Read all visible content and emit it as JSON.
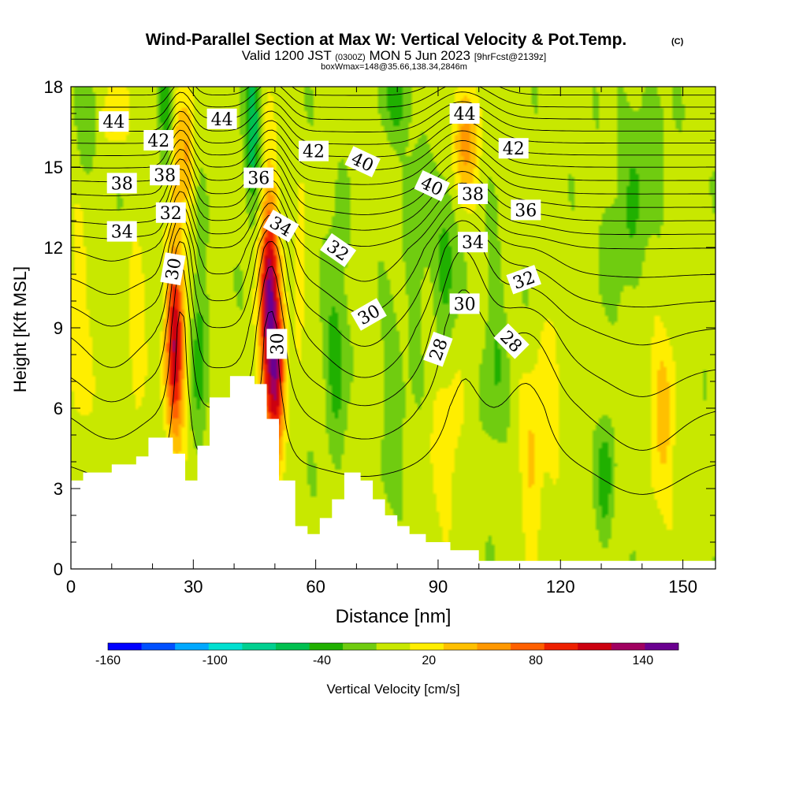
{
  "header": {
    "title": "Wind-Parallel Section at Max W: Vertical Velocity & Pot.Temp.",
    "copyright": "(C)",
    "valid_prefix": "Valid 1200 JST",
    "valid_utc": "(0300Z)",
    "valid_date": "MON 5 Jun 2023",
    "fcst": "[9hrFcst@2139z]",
    "boxinfo": "boxWmax=148@35.66,138.34,2846m"
  },
  "chart_data": {
    "type": "heatmap",
    "xlabel": "Distance [nm]",
    "ylabel": "Height [Kft MSL]",
    "xlim": [
      0,
      158
    ],
    "ylim": [
      0,
      18
    ],
    "x_ticks": [
      "0",
      "30",
      "60",
      "90",
      "120",
      "150"
    ],
    "y_ticks": [
      "0",
      "3",
      "6",
      "9",
      "12",
      "15",
      "18"
    ],
    "background_color": "#ffee00",
    "colorbar": {
      "label": "Vertical Velocity [cm/s]",
      "tick_labels": [
        "-160",
        "-100",
        "-40",
        "20",
        "80",
        "140"
      ],
      "levels": [
        -160,
        -140,
        -120,
        -100,
        -80,
        -60,
        -40,
        -20,
        0,
        20,
        40,
        60,
        80,
        100,
        120,
        140,
        160
      ],
      "colors": [
        "#0000ff",
        "#0050ff",
        "#00a8ff",
        "#00e0d0",
        "#00d090",
        "#00c050",
        "#20b000",
        "#70cc10",
        "#c8e800",
        "#ffee00",
        "#ffc000",
        "#ff9800",
        "#ff6000",
        "#ee2000",
        "#cc0010",
        "#a00060",
        "#6a0090"
      ]
    },
    "terrain": [
      [
        0,
        3.3
      ],
      [
        3,
        3.3
      ],
      [
        3,
        3.6
      ],
      [
        10,
        3.6
      ],
      [
        10,
        3.9
      ],
      [
        16,
        3.9
      ],
      [
        16,
        4.2
      ],
      [
        19,
        4.2
      ],
      [
        19,
        4.9
      ],
      [
        25,
        4.9
      ],
      [
        25,
        4.3
      ],
      [
        28,
        4.3
      ],
      [
        28,
        3.3
      ],
      [
        31,
        3.3
      ],
      [
        31,
        4.6
      ],
      [
        34,
        4.6
      ],
      [
        34,
        6.4
      ],
      [
        39,
        6.4
      ],
      [
        39,
        7.2
      ],
      [
        42,
        7.2
      ],
      [
        42,
        7.2
      ],
      [
        45,
        7.2
      ],
      [
        45,
        6.9
      ],
      [
        48,
        6.9
      ],
      [
        48,
        5.6
      ],
      [
        51,
        5.6
      ],
      [
        51,
        3.3
      ],
      [
        55,
        3.3
      ],
      [
        55,
        1.6
      ],
      [
        58,
        1.6
      ],
      [
        58,
        1.3
      ],
      [
        61,
        1.3
      ],
      [
        61,
        1.9
      ],
      [
        64,
        1.9
      ],
      [
        64,
        2.6
      ],
      [
        67,
        2.6
      ],
      [
        67,
        3.6
      ],
      [
        71,
        3.6
      ],
      [
        71,
        3.3
      ],
      [
        74,
        3.3
      ],
      [
        74,
        2.6
      ],
      [
        77,
        2.6
      ],
      [
        77,
        2.0
      ],
      [
        80,
        2.0
      ],
      [
        80,
        1.6
      ],
      [
        83,
        1.6
      ],
      [
        83,
        1.3
      ],
      [
        87,
        1.3
      ],
      [
        87,
        1.0
      ],
      [
        93,
        1.0
      ],
      [
        93,
        0.7
      ],
      [
        100,
        0.7
      ],
      [
        100,
        0.3
      ],
      [
        158,
        0.3
      ]
    ],
    "updraft_cells": [
      {
        "x": 25.5,
        "y": 8.5,
        "sx": 1.6,
        "sy": 2.6,
        "w": 130
      },
      {
        "x": 48.5,
        "y": 10.0,
        "sx": 1.6,
        "sy": 3.0,
        "w": 148
      },
      {
        "x": 50.5,
        "y": 7.0,
        "sx": 1.4,
        "sy": 2.0,
        "w": 110
      },
      {
        "x": 26.0,
        "y": 15.5,
        "sx": 2.0,
        "sy": 1.6,
        "w": 50
      },
      {
        "x": 96.5,
        "y": 16.0,
        "sx": 2.5,
        "sy": 1.5,
        "w": 60
      },
      {
        "x": 113,
        "y": 4.0,
        "sx": 2.0,
        "sy": 2.0,
        "w": 40
      },
      {
        "x": 145,
        "y": 5.5,
        "sx": 2.2,
        "sy": 2.5,
        "w": 40
      },
      {
        "x": 92,
        "y": 4.5,
        "sx": 2.5,
        "sy": 2.0,
        "w": 30
      },
      {
        "x": 16,
        "y": 8.5,
        "sx": 1.5,
        "sy": 2.5,
        "w": 30
      },
      {
        "x": 29,
        "y": 15.5,
        "sx": 1.0,
        "sy": 1.5,
        "w": 30
      },
      {
        "x": 10,
        "y": 17.0,
        "sx": 2.5,
        "sy": 1.0,
        "w": 25
      },
      {
        "x": 56,
        "y": 10.5,
        "sx": 1.0,
        "sy": 2.0,
        "w": 30
      },
      {
        "x": 2,
        "y": 9,
        "sx": 2,
        "sy": 3,
        "w": 25
      },
      {
        "x": 118,
        "y": 7,
        "sx": 2,
        "sy": 2,
        "w": 25
      }
    ],
    "downdraft_cells": [
      {
        "x": 44.5,
        "y": 16.5,
        "sx": 1.4,
        "sy": 2.2,
        "w": -65
      },
      {
        "x": 23.5,
        "y": 16.5,
        "sx": 1.3,
        "sy": 2.0,
        "w": -50
      },
      {
        "x": 31.5,
        "y": 8.5,
        "sx": 1.3,
        "sy": 2.5,
        "w": -40
      },
      {
        "x": 65,
        "y": 8.5,
        "sx": 2.0,
        "sy": 3.0,
        "w": -35
      },
      {
        "x": 80,
        "y": 17.5,
        "sx": 2.5,
        "sy": 1.0,
        "w": -35
      },
      {
        "x": 92,
        "y": 12.0,
        "sx": 2.0,
        "sy": 2.5,
        "w": -35
      },
      {
        "x": 131,
        "y": 3.5,
        "sx": 1.4,
        "sy": 1.6,
        "w": -40
      },
      {
        "x": 79,
        "y": 6.0,
        "sx": 2.0,
        "sy": 2.5,
        "w": -25
      },
      {
        "x": 140,
        "y": 15.5,
        "sx": 4.0,
        "sy": 2.0,
        "w": -25
      },
      {
        "x": 85,
        "y": 12.5,
        "sx": 2.0,
        "sy": 2.5,
        "w": -25
      },
      {
        "x": 104,
        "y": 8.0,
        "sx": 2.0,
        "sy": 3.0,
        "w": -25
      },
      {
        "x": 4,
        "y": 16.5,
        "sx": 2.0,
        "sy": 1.5,
        "w": -22
      },
      {
        "x": 135,
        "y": 12,
        "sx": 4.0,
        "sy": 1.5,
        "w": -22
      }
    ],
    "theta_levels": [
      26,
      27,
      28,
      29,
      30,
      31,
      32,
      33,
      34,
      35,
      36,
      37,
      38,
      39,
      40,
      41,
      42,
      43,
      44,
      45
    ],
    "theta_profile": {
      "heights": [
        0,
        6,
        9,
        12,
        15,
        18
      ],
      "values": [
        24,
        27,
        29,
        32,
        38,
        44.7
      ]
    },
    "theta_lifts": [
      {
        "x": 27,
        "y": 12.5,
        "sx": 2.4,
        "sy": 4.5,
        "a": -4.5
      },
      {
        "x": 49,
        "y": 12.5,
        "sx": 3.5,
        "sy": 4.5,
        "a": -4.5
      },
      {
        "x": 96,
        "y": 13.0,
        "sx": 6.0,
        "sy": 4.5,
        "a": -4.0
      },
      {
        "x": 112,
        "y": 8.5,
        "sx": 6.0,
        "sy": 3.0,
        "a": -1.8
      },
      {
        "x": 72,
        "y": 9.0,
        "sx": 8.0,
        "sy": 3.0,
        "a": 1.5
      },
      {
        "x": 10,
        "y": 8.0,
        "sx": 6.0,
        "sy": 3.0,
        "a": 1.0
      },
      {
        "x": 140,
        "y": 5.0,
        "sx": 8.0,
        "sy": 3.0,
        "a": 0.8
      }
    ],
    "contour_labels": [
      {
        "text": "44",
        "x": 10.5,
        "y": 16.7,
        "rot": 0
      },
      {
        "text": "42",
        "x": 21.5,
        "y": 16.0,
        "rot": 0
      },
      {
        "text": "44",
        "x": 37.0,
        "y": 16.8,
        "rot": 0
      },
      {
        "text": "42",
        "x": 59.5,
        "y": 15.6,
        "rot": 0
      },
      {
        "text": "40",
        "x": 71.5,
        "y": 15.2,
        "rot": 25
      },
      {
        "text": "44",
        "x": 96.5,
        "y": 17.0,
        "rot": 0
      },
      {
        "text": "42",
        "x": 108.5,
        "y": 15.7,
        "rot": 0
      },
      {
        "text": "38",
        "x": 12.5,
        "y": 14.4,
        "rot": 0
      },
      {
        "text": "38",
        "x": 23.0,
        "y": 14.7,
        "rot": 0
      },
      {
        "text": "36",
        "x": 46.0,
        "y": 14.6,
        "rot": 0
      },
      {
        "text": "40",
        "x": 88.5,
        "y": 14.3,
        "rot": 25
      },
      {
        "text": "38",
        "x": 98.5,
        "y": 14.0,
        "rot": 0
      },
      {
        "text": "36",
        "x": 111.5,
        "y": 13.4,
        "rot": 0
      },
      {
        "text": "34",
        "x": 12.5,
        "y": 12.6,
        "rot": 0
      },
      {
        "text": "32",
        "x": 24.5,
        "y": 13.3,
        "rot": 0
      },
      {
        "text": "34",
        "x": 51.5,
        "y": 12.8,
        "rot": 30
      },
      {
        "text": "32",
        "x": 65.5,
        "y": 11.9,
        "rot": 35
      },
      {
        "text": "34",
        "x": 98.5,
        "y": 12.2,
        "rot": 0
      },
      {
        "text": "30",
        "x": 25.0,
        "y": 11.2,
        "rot": -80
      },
      {
        "text": "32",
        "x": 111.0,
        "y": 10.8,
        "rot": -20
      },
      {
        "text": "30",
        "x": 73.0,
        "y": 9.5,
        "rot": -30
      },
      {
        "text": "30",
        "x": 96.5,
        "y": 9.9,
        "rot": 0
      },
      {
        "text": "30",
        "x": 50.5,
        "y": 8.4,
        "rot": -90
      },
      {
        "text": "28",
        "x": 90.0,
        "y": 8.2,
        "rot": -70
      },
      {
        "text": "28",
        "x": 108.0,
        "y": 8.5,
        "rot": 45
      }
    ]
  }
}
